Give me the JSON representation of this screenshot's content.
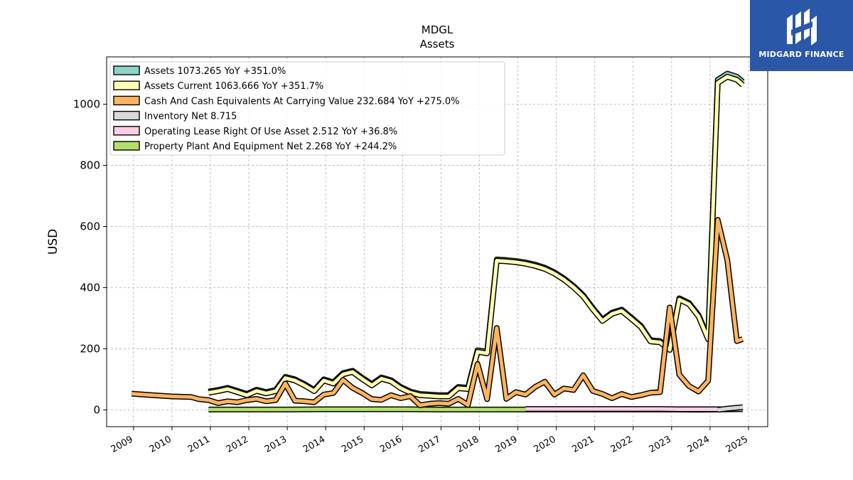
{
  "logo": {
    "text": "MIDGARD FINANCE"
  },
  "chart_data": {
    "type": "line",
    "title": "MDGL",
    "subtitle": "Assets",
    "ylabel": "USD",
    "xlabel": "",
    "xlim": [
      2008.3,
      2025.5
    ],
    "ylim": [
      -55,
      1155
    ],
    "yticks": [
      0,
      200,
      400,
      600,
      800,
      1000
    ],
    "xticks": [
      "2009",
      "2010",
      "2011",
      "2012",
      "2013",
      "2014",
      "2015",
      "2016",
      "2017",
      "2018",
      "2019",
      "2020",
      "2021",
      "2022",
      "2023",
      "2024",
      "2025"
    ],
    "grid": true,
    "legend_position": "top-left",
    "series": [
      {
        "name": "Assets",
        "legend": "Assets  1073.265 YoY +351.0%",
        "color": "#8dd3c7",
        "x": [
          2010.95,
          2011.2,
          2011.45,
          2011.7,
          2011.95,
          2012.2,
          2012.45,
          2012.7,
          2012.95,
          2013.2,
          2013.45,
          2013.7,
          2013.95,
          2014.2,
          2014.45,
          2014.7,
          2014.95,
          2015.2,
          2015.45,
          2015.7,
          2015.95,
          2016.2,
          2016.45,
          2016.7,
          2016.95,
          2017.2,
          2017.45,
          2017.7,
          2017.95,
          2018.2,
          2018.45,
          2018.7,
          2018.95,
          2019.2,
          2019.45,
          2019.7,
          2019.95,
          2020.2,
          2020.45,
          2020.7,
          2020.95,
          2021.2,
          2021.45,
          2021.7,
          2021.95,
          2022.2,
          2022.45,
          2022.7,
          2022.95,
          2023.2,
          2023.45,
          2023.7,
          2023.95,
          2024.2,
          2024.45,
          2024.7,
          2024.85
        ],
        "values": [
          60,
          65,
          72,
          62,
          52,
          66,
          58,
          65,
          108,
          100,
          84,
          65,
          100,
          90,
          120,
          128,
          105,
          84,
          106,
          97,
          75,
          60,
          52,
          50,
          48,
          48,
          75,
          72,
          195,
          190,
          492,
          490,
          487,
          482,
          475,
          465,
          450,
          430,
          405,
          375,
          333,
          295,
          318,
          328,
          302,
          275,
          228,
          225,
          200,
          365,
          350,
          310,
          235,
          1080,
          1100,
          1090,
          1073
        ]
      },
      {
        "name": "Assets Current",
        "legend": "Assets Current  1063.666 YoY +351.7%",
        "color": "#ffffb3",
        "x": [
          2010.95,
          2011.2,
          2011.45,
          2011.7,
          2011.95,
          2012.2,
          2012.45,
          2012.7,
          2012.95,
          2013.2,
          2013.45,
          2013.7,
          2013.95,
          2014.2,
          2014.45,
          2014.7,
          2014.95,
          2015.2,
          2015.45,
          2015.7,
          2015.95,
          2016.2,
          2016.45,
          2016.7,
          2016.95,
          2017.2,
          2017.45,
          2017.7,
          2017.95,
          2018.2,
          2018.45,
          2018.7,
          2018.95,
          2019.2,
          2019.45,
          2019.7,
          2019.95,
          2020.2,
          2020.45,
          2020.7,
          2020.95,
          2021.2,
          2021.45,
          2021.7,
          2021.95,
          2022.2,
          2022.45,
          2022.7,
          2022.95,
          2023.2,
          2023.45,
          2023.7,
          2023.95,
          2024.2,
          2024.45,
          2024.7,
          2024.85
        ],
        "values": [
          56,
          61,
          68,
          58,
          48,
          62,
          54,
          61,
          104,
          96,
          80,
          61,
          96,
          86,
          116,
          124,
          101,
          80,
          102,
          93,
          71,
          56,
          48,
          46,
          44,
          44,
          71,
          68,
          190,
          185,
          488,
          486,
          483,
          478,
          471,
          461,
          446,
          426,
          401,
          371,
          329,
          291,
          314,
          324,
          298,
          271,
          224,
          221,
          196,
          361,
          346,
          306,
          231,
          1070,
          1090,
          1080,
          1063
        ]
      },
      {
        "name": "Cash And Cash Equivalents At Carrying Value",
        "legend": "Cash And Cash Equivalents At Carrying Value  232.684 YoY +275.0%",
        "color": "#fdb462",
        "x": [
          2008.95,
          2009.5,
          2010.0,
          2010.5,
          2010.7,
          2010.95,
          2011.2,
          2011.45,
          2011.7,
          2011.95,
          2012.2,
          2012.45,
          2012.7,
          2012.95,
          2013.2,
          2013.45,
          2013.7,
          2013.95,
          2014.2,
          2014.45,
          2014.7,
          2014.95,
          2015.2,
          2015.45,
          2015.7,
          2015.95,
          2016.2,
          2016.45,
          2016.7,
          2016.95,
          2017.2,
          2017.45,
          2017.7,
          2017.95,
          2018.2,
          2018.45,
          2018.7,
          2018.95,
          2019.2,
          2019.45,
          2019.7,
          2019.95,
          2020.2,
          2020.45,
          2020.7,
          2020.95,
          2021.2,
          2021.45,
          2021.7,
          2021.95,
          2022.2,
          2022.45,
          2022.7,
          2022.95,
          2023.2,
          2023.45,
          2023.7,
          2023.95,
          2024.2,
          2024.45,
          2024.7,
          2024.85
        ],
        "values": [
          53,
          48,
          44,
          42,
          35,
          32,
          22,
          28,
          25,
          32,
          36,
          28,
          32,
          86,
          30,
          28,
          25,
          50,
          55,
          98,
          72,
          55,
          35,
          33,
          48,
          38,
          45,
          15,
          20,
          22,
          20,
          36,
          16,
          150,
          35,
          268,
          36,
          58,
          50,
          75,
          92,
          50,
          70,
          65,
          113,
          62,
          52,
          38,
          52,
          42,
          48,
          56,
          58,
          335,
          115,
          78,
          60,
          95,
          622,
          490,
          225,
          232
        ]
      },
      {
        "name": "Inventory Net",
        "legend": "Inventory Net  8.715",
        "color": "#d9d9d9",
        "x": [
          2024.2,
          2024.45,
          2024.7,
          2024.85
        ],
        "values": [
          0,
          4,
          7,
          8.715
        ]
      },
      {
        "name": "Operating Lease Right Of Use Asset",
        "legend": "Operating Lease Right Of Use Asset  2.512 YoY +36.8%",
        "color": "#fccde5",
        "x": [
          2019.2,
          2019.7,
          2020.2,
          2020.7,
          2021.2,
          2021.7,
          2022.2,
          2022.7,
          2023.2,
          2023.7,
          2024.2,
          2024.85
        ],
        "values": [
          3,
          3,
          3,
          3,
          3,
          3,
          3,
          3,
          2,
          2,
          2,
          2.512
        ]
      },
      {
        "name": "Property Plant And Equipment Net",
        "legend": "Property Plant And Equipment Net  2.268 YoY +244.2%",
        "color": "#b3de69",
        "x": [
          2010.95,
          2012.0,
          2013.0,
          2014.0,
          2015.0,
          2016.0,
          2017.0,
          2018.0,
          2019.0,
          2020.0,
          2021.0,
          2022.0,
          2023.0,
          2023.7,
          2024.2,
          2024.85
        ],
        "values": [
          1,
          1,
          1,
          2,
          2,
          2,
          1,
          1,
          1,
          1,
          1,
          1,
          1,
          0.5,
          1,
          2.268
        ]
      }
    ]
  }
}
